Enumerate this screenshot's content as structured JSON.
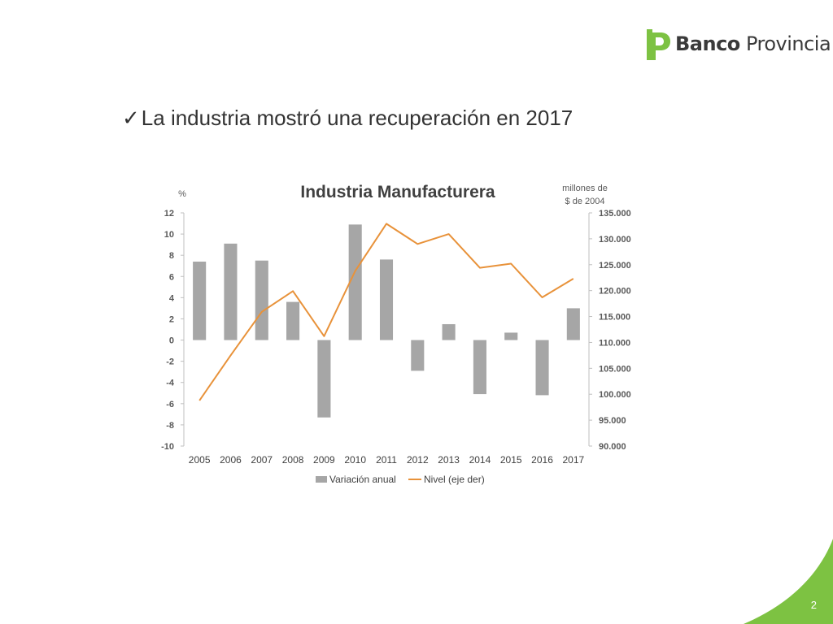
{
  "brand": {
    "name_bold": "Banco",
    "name_regular": "Provincia",
    "logo_color": "#7dc242"
  },
  "slide": {
    "headline": "La industria mostró una recuperación en 2017",
    "check_glyph": "✓",
    "page_number": "2"
  },
  "chart_data": {
    "type": "bar",
    "title": "Industria Manufacturera",
    "left_axis_unit": "%",
    "right_axis_unit": [
      "millones de",
      "$ de 2004"
    ],
    "categories": [
      "2005",
      "2006",
      "2007",
      "2008",
      "2009",
      "2010",
      "2011",
      "2012",
      "2013",
      "2014",
      "2015",
      "2016",
      "2017"
    ],
    "left_ticks": [
      "12",
      "10",
      "8",
      "6",
      "4",
      "2",
      "0",
      "-2",
      "-4",
      "-6",
      "-8",
      "-10"
    ],
    "right_ticks": [
      "135.000",
      "130.000",
      "125.000",
      "120.000",
      "115.000",
      "110.000",
      "105.000",
      "100.000",
      "95.000",
      "90.000"
    ],
    "ylim_left": [
      -10,
      12
    ],
    "ylim_right": [
      90000,
      135000
    ],
    "series": [
      {
        "name": "Variación anual",
        "type": "bar",
        "axis": "left",
        "color": "#a6a6a6",
        "values": [
          7.4,
          9.1,
          7.5,
          3.6,
          -7.3,
          10.9,
          7.6,
          -2.9,
          1.5,
          -5.1,
          0.7,
          -5.2,
          3.0
        ]
      },
      {
        "name": "Nivel (eje der)",
        "type": "line",
        "axis": "right",
        "color": "#e8923a",
        "values": [
          98800,
          107500,
          115900,
          119900,
          111200,
          123800,
          132900,
          129000,
          130900,
          124400,
          125200,
          118700,
          122300
        ]
      }
    ],
    "legend_position": "bottom",
    "grid": false
  }
}
